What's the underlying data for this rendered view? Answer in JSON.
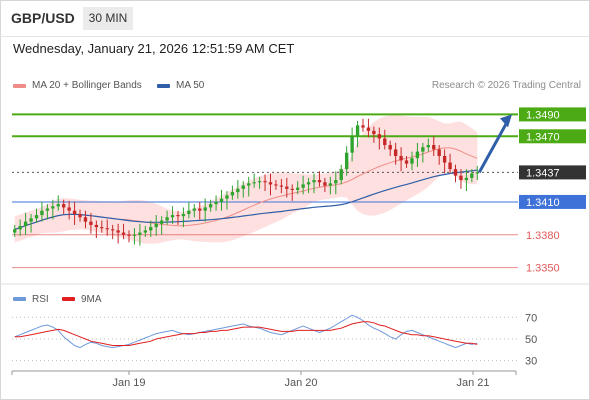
{
  "header": {
    "pair": "GBP/USD",
    "timeframe": "30 MIN",
    "timestamp": "Wednesday, January 21, 2026 12:51:59 AM CET"
  },
  "legend": {
    "ma20": "MA 20 + Bollinger Bands",
    "ma50": "MA 50",
    "credit": "Research © 2026 Trading Central"
  },
  "colors": {
    "green_level": "#4caa14",
    "blue_level": "#3f72d9",
    "red_level": "#e05a5a",
    "current_price": "#333333",
    "bollinger_fill": "#fde0df",
    "ma20": "#f08c87",
    "ma50": "#2f5fa8",
    "bull_candle": "#2ea32e",
    "bear_candle": "#c62828",
    "rsi": "#6f9ad9",
    "rsi_ma": "#e02020",
    "arrow": "#2f5fa8"
  },
  "chart_data": [
    {
      "type": "candlestick",
      "ylim": [
        1.3335,
        1.3505
      ],
      "x_labels": [
        "Jan 19",
        "Jan 20",
        "Jan 21"
      ],
      "legend_position": "top-left",
      "indicators": [
        "MA 20 + Bollinger Bands",
        "MA 50"
      ],
      "levels": [
        {
          "value": "1.3490",
          "kind": "resistance",
          "color": "#4caa14"
        },
        {
          "value": "1.3470",
          "kind": "resistance",
          "color": "#4caa14"
        },
        {
          "value": "1.3437",
          "kind": "current",
          "color": "#333333"
        },
        {
          "value": "1.3410",
          "kind": "support",
          "color": "#3f72d9"
        },
        {
          "value": "1.3380",
          "kind": "support",
          "color": "#e05a5a"
        },
        {
          "value": "1.3350",
          "kind": "support",
          "color": "#e05a5a"
        }
      ],
      "forecast_arrow": {
        "from": 1.3437,
        "to": 1.349,
        "direction": "up"
      },
      "series": [
        {
          "name": "GBP/USD",
          "close": [
            1.3385,
            1.3388,
            1.3392,
            1.3395,
            1.3398,
            1.3402,
            1.3404,
            1.3406,
            1.3408,
            1.3405,
            1.3402,
            1.3399,
            1.3396,
            1.3392,
            1.3389,
            1.3387,
            1.3386,
            1.3385,
            1.3384,
            1.3382,
            1.338,
            1.3379,
            1.338,
            1.3382,
            1.3384,
            1.3387,
            1.339,
            1.3393,
            1.3396,
            1.3398,
            1.3397,
            1.3399,
            1.3402,
            1.3404,
            1.3402,
            1.3405,
            1.3408,
            1.341,
            1.3413,
            1.3416,
            1.3419,
            1.3422,
            1.3425,
            1.3427,
            1.3428,
            1.3429,
            1.3428,
            1.3426,
            1.3425,
            1.3424,
            1.3422,
            1.3421,
            1.3423,
            1.3426,
            1.3428,
            1.343,
            1.3428,
            1.3425,
            1.3427,
            1.343,
            1.344,
            1.3455,
            1.347,
            1.348,
            1.3478,
            1.3475,
            1.3472,
            1.3468,
            1.3462,
            1.3458,
            1.3452,
            1.3448,
            1.3445,
            1.345,
            1.3456,
            1.346,
            1.3462,
            1.3458,
            1.3452,
            1.3446,
            1.344,
            1.3434,
            1.343,
            1.3432,
            1.3436,
            1.3437
          ]
        },
        {
          "name": "RSI",
          "ylim": [
            25,
            75
          ],
          "ticks": [
            "70",
            "50",
            "30"
          ],
          "values": [
            52,
            54,
            56,
            58,
            60,
            62,
            63,
            61,
            58,
            52,
            48,
            44,
            42,
            45,
            47,
            46,
            44,
            43,
            42,
            43,
            44,
            45,
            47,
            49,
            51,
            53,
            55,
            56,
            57,
            58,
            56,
            55,
            54,
            55,
            56,
            57,
            58,
            59,
            60,
            61,
            62,
            63,
            64,
            62,
            61,
            60,
            58,
            56,
            55,
            54,
            56,
            58,
            60,
            62,
            60,
            58,
            56,
            58,
            60,
            63,
            66,
            69,
            72,
            70,
            67,
            63,
            60,
            58,
            55,
            52,
            50,
            54,
            57,
            58,
            56,
            54,
            52,
            50,
            48,
            46,
            44,
            42,
            44,
            46,
            45,
            46
          ]
        },
        {
          "name": "9MA",
          "values": [
            52,
            52,
            53,
            54,
            55,
            56,
            57,
            58,
            59,
            58,
            56,
            54,
            52,
            50,
            48,
            47,
            46,
            45,
            44,
            44,
            44,
            44,
            45,
            46,
            47,
            48,
            50,
            51,
            52,
            53,
            54,
            55,
            55,
            55,
            56,
            56,
            57,
            57,
            58,
            58,
            59,
            60,
            61,
            61,
            61,
            61,
            60,
            59,
            58,
            57,
            57,
            57,
            58,
            58,
            58,
            58,
            58,
            58,
            58,
            59,
            60,
            62,
            64,
            65,
            66,
            66,
            65,
            63,
            62,
            60,
            58,
            56,
            55,
            54,
            54,
            53,
            53,
            52,
            51,
            50,
            49,
            48,
            47,
            46,
            46,
            45
          ]
        }
      ]
    }
  ],
  "rsi_legend": {
    "rsi": "RSI",
    "ma": "9MA"
  }
}
